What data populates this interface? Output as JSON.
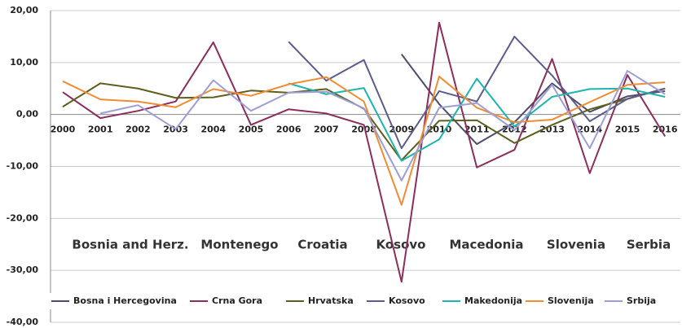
{
  "chart_data": {
    "type": "line",
    "categories": [
      "2000",
      "2001",
      "2002",
      "2003",
      "2004",
      "2005",
      "2006",
      "2007",
      "2008",
      "2009",
      "2010",
      "2011",
      "2012",
      "2013",
      "2014",
      "2015",
      "2016"
    ],
    "series": [
      {
        "name": "Bosna i Hercegovina",
        "color": "#4d4d6b",
        "values": [
          null,
          null,
          null,
          null,
          null,
          null,
          null,
          null,
          null,
          11.6,
          2,
          -5.7,
          -1.5,
          6,
          0.5,
          3.5,
          4.5
        ]
      },
      {
        "name": "Crna Gora",
        "color": "#8c2d5c",
        "values": [
          4.3,
          -0.7,
          0.7,
          2.5,
          13.9,
          -2,
          1,
          0.2,
          -2,
          -32.2,
          17.7,
          -10.2,
          -6.8,
          10.7,
          -11.3,
          7.6,
          -4.2
        ]
      },
      {
        "name": "Hrvatska",
        "color": "#5e5e1e",
        "values": [
          1.5,
          6,
          5,
          3.2,
          3.3,
          4.6,
          4.2,
          4.9,
          1.1,
          -8.8,
          -1.2,
          -1.1,
          -5.5,
          -2,
          1,
          3,
          5
        ]
      },
      {
        "name": "Kosovo",
        "color": "#5c5c8c",
        "values": [
          null,
          null,
          null,
          null,
          null,
          null,
          14,
          6.5,
          10.5,
          -6.5,
          4.5,
          2.5,
          15,
          7.5,
          -1.3,
          3,
          5
        ]
      },
      {
        "name": "Makedonija",
        "color": "#1db5ad",
        "values": [
          null,
          null,
          null,
          null,
          null,
          null,
          6,
          3.9,
          5.1,
          -8.9,
          -4.8,
          6.9,
          -2.3,
          3.4,
          4.9,
          5,
          3.4
        ]
      },
      {
        "name": "Slovenija",
        "color": "#f28c33",
        "values": [
          6.4,
          2.9,
          2.5,
          1.4,
          4.9,
          3.6,
          5.8,
          7.2,
          2.5,
          -17.4,
          7.3,
          1.3,
          -1.5,
          -1,
          2.4,
          5.7,
          6.2
        ]
      },
      {
        "name": "Srbija",
        "color": "#9e9ed6",
        "values": [
          null,
          0.2,
          1.8,
          -2.8,
          6.6,
          0.7,
          4.2,
          4.4,
          1.2,
          -12.7,
          1.3,
          2.2,
          -3,
          5.7,
          -6.5,
          8.4,
          3.9
        ]
      }
    ],
    "annotations": [
      "Bosnia and Herz.",
      "Montenego",
      "Croatia",
      "Kosovo",
      "Macedonia",
      "Slovenia",
      "Serbia"
    ],
    "ylim": [
      -40,
      20
    ],
    "yticks": [
      {
        "value": -40,
        "label": "-40,00"
      },
      {
        "value": -30,
        "label": "-30,00"
      },
      {
        "value": -20,
        "label": "-20,00"
      },
      {
        "value": -10,
        "label": "-10,00"
      },
      {
        "value": 0,
        "label": "0,00"
      },
      {
        "value": 10,
        "label": "10,00"
      },
      {
        "value": 20,
        "label": "20,00"
      }
    ],
    "grid": true,
    "legend": "bottom"
  }
}
